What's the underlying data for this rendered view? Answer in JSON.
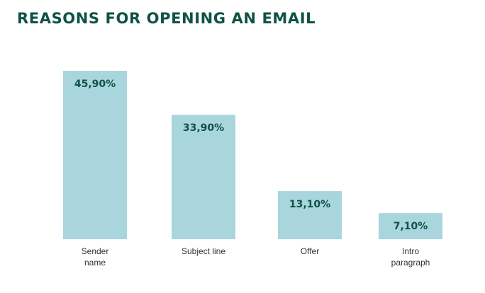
{
  "colors": {
    "bar": "#a9d5dd",
    "title": "#0f5246",
    "label": "#0f5246",
    "category": "#333333"
  },
  "chart_data": {
    "type": "bar",
    "title": "REASONS FOR OPENING AN EMAIL",
    "xlabel": "",
    "ylabel": "",
    "categories": [
      [
        "Sender",
        "name"
      ],
      [
        "Subject line"
      ],
      [
        "Offer"
      ],
      [
        "Intro",
        "paragraph"
      ]
    ],
    "values": [
      45.9,
      33.9,
      13.1,
      7.1
    ],
    "value_labels": [
      "45,90%",
      "33,90%",
      "13,10%",
      "7,10%"
    ],
    "ylim": [
      0,
      50
    ],
    "grid": false,
    "legend": "none"
  }
}
